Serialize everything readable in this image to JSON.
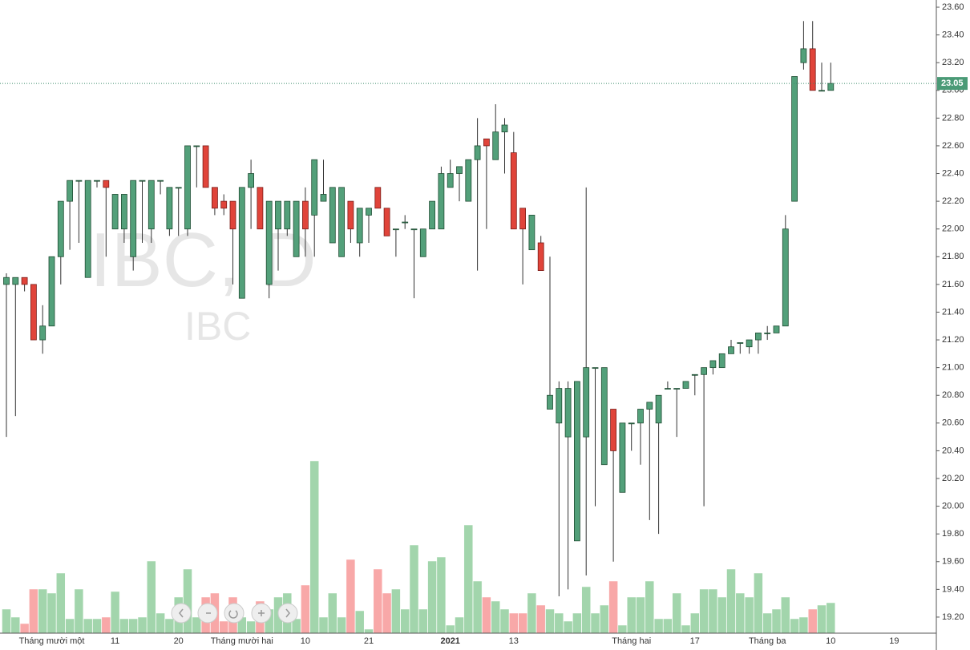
{
  "chart_data": {
    "type": "candlestick",
    "watermark": "IBC, D",
    "watermark_sub": "IBC",
    "last_price": 23.05,
    "categories": [
      null,
      null,
      null,
      null,
      null,
      "Tháng mười một",
      null,
      null,
      null,
      null,
      null,
      null,
      "11",
      null,
      null,
      null,
      null,
      null,
      null,
      "20",
      null,
      null,
      null,
      null,
      null,
      null,
      "Tháng mười hai",
      null,
      null,
      null,
      null,
      null,
      null,
      "10",
      null,
      null,
      null,
      null,
      null,
      null,
      "21",
      null,
      null,
      null,
      null,
      null,
      null,
      null,
      null,
      "2021",
      null,
      null,
      null,
      null,
      null,
      null,
      "13",
      null,
      null,
      null,
      null,
      null,
      null,
      null,
      null,
      null,
      null,
      null,
      null,
      "Tháng hai",
      null,
      null,
      null,
      null,
      null,
      null,
      "17",
      null,
      null,
      null,
      null,
      null,
      null,
      null,
      "Tháng ba",
      null,
      null,
      null,
      null,
      null,
      null,
      "10",
      null,
      null,
      null,
      null,
      null,
      null,
      "19"
    ],
    "open": [
      21.6,
      21.6,
      21.65,
      21.6,
      21.2,
      21.3,
      21.8,
      22.2,
      22.35,
      21.65,
      22.35,
      22.35,
      22.0,
      22.0,
      21.8,
      22.35,
      22.0,
      22.35,
      22.0,
      22.3,
      22.0,
      22.6,
      22.6,
      22.3,
      22.2,
      22.2,
      21.5,
      22.3,
      22.3,
      21.6,
      22.0,
      22.0,
      21.8,
      22.2,
      22.1,
      22.2,
      21.9,
      21.8,
      22.2,
      21.9,
      22.1,
      22.3,
      22.15,
      22.0,
      22.05,
      22.0,
      21.8,
      22.0,
      22.0,
      22.3,
      22.4,
      22.2,
      22.5,
      22.65,
      22.5,
      22.7,
      22.55,
      22.15,
      21.85,
      21.9,
      20.7,
      20.6,
      20.5,
      19.75,
      20.5,
      21.0,
      20.3,
      20.7,
      20.1,
      20.6,
      20.6,
      20.7,
      20.6,
      20.85,
      20.85,
      20.85,
      20.95,
      20.95,
      21.0,
      21.0,
      21.1,
      21.18,
      21.15,
      21.2,
      21.25,
      21.25,
      21.3,
      22.2,
      23.2,
      23.3,
      23.0,
      23.0,
      null,
      null,
      null,
      null,
      null,
      null,
      null
    ],
    "high": [
      21.68,
      21.65,
      21.65,
      21.6,
      21.45,
      21.8,
      22.2,
      22.35,
      22.35,
      22.35,
      22.35,
      22.35,
      22.25,
      22.25,
      22.35,
      22.35,
      22.35,
      22.35,
      22.3,
      22.3,
      22.6,
      22.6,
      22.6,
      22.3,
      22.25,
      22.2,
      22.3,
      22.5,
      22.3,
      22.2,
      22.2,
      22.2,
      22.2,
      22.3,
      22.5,
      22.5,
      22.3,
      22.3,
      22.2,
      22.15,
      22.15,
      22.3,
      22.15,
      22.0,
      22.1,
      22.0,
      22.0,
      22.2,
      22.45,
      22.5,
      22.45,
      22.5,
      22.8,
      22.65,
      22.9,
      22.8,
      22.7,
      22.15,
      22.1,
      21.95,
      21.8,
      20.9,
      20.9,
      20.9,
      22.3,
      21.0,
      21.0,
      20.7,
      20.6,
      20.6,
      20.7,
      20.75,
      20.8,
      20.9,
      20.85,
      20.9,
      20.95,
      21.0,
      21.05,
      21.1,
      21.2,
      21.18,
      21.2,
      21.25,
      21.3,
      21.3,
      22.1,
      23.1,
      23.5,
      23.5,
      23.2,
      23.2,
      null,
      null,
      null,
      null,
      null,
      null,
      null
    ],
    "low": [
      20.5,
      20.65,
      21.55,
      21.2,
      21.1,
      21.3,
      21.6,
      21.85,
      21.9,
      21.65,
      22.3,
      21.8,
      22.0,
      21.9,
      21.7,
      21.9,
      21.9,
      22.25,
      21.95,
      21.95,
      21.95,
      22.3,
      22.3,
      22.1,
      22.1,
      21.6,
      21.5,
      22.0,
      22.0,
      21.5,
      21.7,
      21.95,
      21.8,
      21.8,
      21.8,
      22.2,
      21.9,
      21.8,
      21.9,
      21.8,
      21.9,
      22.15,
      21.95,
      21.8,
      22.0,
      21.5,
      21.8,
      22.0,
      22.0,
      22.3,
      22.2,
      22.2,
      21.7,
      22.0,
      22.5,
      22.4,
      22.0,
      21.6,
      21.85,
      21.7,
      20.7,
      19.35,
      19.4,
      19.75,
      19.5,
      20.0,
      20.3,
      19.6,
      20.1,
      20.4,
      20.3,
      19.9,
      19.8,
      20.85,
      20.5,
      20.85,
      20.8,
      20.0,
      20.95,
      21.0,
      21.1,
      21.1,
      21.1,
      21.1,
      21.2,
      21.25,
      21.3,
      22.2,
      23.15,
      23.0,
      23.0,
      23.0,
      null,
      null,
      null,
      null,
      null,
      null,
      null
    ],
    "close": [
      21.65,
      21.65,
      21.6,
      21.2,
      21.3,
      21.8,
      22.2,
      22.35,
      22.35,
      22.35,
      22.35,
      22.3,
      22.25,
      22.25,
      22.35,
      22.35,
      22.35,
      22.35,
      22.3,
      22.3,
      22.6,
      22.6,
      22.3,
      22.15,
      22.15,
      22.0,
      22.3,
      22.4,
      22.0,
      22.2,
      22.2,
      22.2,
      22.2,
      22.0,
      22.5,
      22.25,
      22.3,
      22.3,
      22.0,
      22.15,
      22.15,
      22.15,
      21.95,
      22.0,
      22.05,
      22.0,
      22.0,
      22.2,
      22.4,
      22.4,
      22.45,
      22.5,
      22.6,
      22.6,
      22.7,
      22.75,
      22.0,
      22.0,
      22.1,
      21.7,
      20.8,
      20.85,
      20.85,
      20.9,
      21.0,
      21.0,
      21.0,
      20.4,
      20.6,
      20.6,
      20.7,
      20.75,
      20.8,
      20.85,
      20.85,
      20.9,
      20.95,
      21.0,
      21.05,
      21.1,
      21.15,
      21.18,
      21.2,
      21.25,
      21.25,
      21.3,
      22.0,
      23.1,
      23.3,
      23.0,
      23.0,
      23.05,
      null,
      null,
      null,
      null,
      null,
      null,
      null
    ],
    "volume": [
      30,
      20,
      12,
      55,
      55,
      50,
      75,
      18,
      55,
      18,
      18,
      20,
      52,
      18,
      18,
      20,
      90,
      25,
      18,
      45,
      80,
      20,
      45,
      50,
      15,
      45,
      20,
      15,
      40,
      30,
      45,
      50,
      18,
      60,
      215,
      20,
      50,
      20,
      92,
      28,
      5,
      80,
      50,
      55,
      30,
      110,
      30,
      90,
      95,
      10,
      20,
      135,
      65,
      45,
      40,
      30,
      25,
      25,
      50,
      35,
      30,
      25,
      15,
      25,
      58,
      25,
      35,
      65,
      10,
      45,
      45,
      65,
      18,
      18,
      50,
      10,
      25,
      55,
      55,
      45,
      80,
      50,
      45,
      75,
      25,
      30,
      45,
      18,
      20,
      30,
      35,
      38,
      null,
      null,
      null,
      null,
      null,
      null,
      null
    ],
    "volume_lim": [
      0,
      790
    ],
    "ylim": [
      19.084,
      23.652
    ],
    "yticks": [
      {
        "value": 19.2,
        "label": "19.20"
      },
      {
        "value": 19.4,
        "label": "19.40"
      },
      {
        "value": 19.6,
        "label": "19.60"
      },
      {
        "value": 19.8,
        "label": "19.80"
      },
      {
        "value": 20.0,
        "label": "20.00"
      },
      {
        "value": 20.2,
        "label": "20.20"
      },
      {
        "value": 20.4,
        "label": "20.40"
      },
      {
        "value": 20.6,
        "label": "20.60"
      },
      {
        "value": 20.8,
        "label": "20.80"
      },
      {
        "value": 21.0,
        "label": "21.00"
      },
      {
        "value": 21.2,
        "label": "21.20"
      },
      {
        "value": 21.4,
        "label": "21.40"
      },
      {
        "value": 21.6,
        "label": "21.60"
      },
      {
        "value": 21.8,
        "label": "21.80"
      },
      {
        "value": 22.0,
        "label": "22.00"
      },
      {
        "value": 22.2,
        "label": "22.20"
      },
      {
        "value": 22.4,
        "label": "22.40"
      },
      {
        "value": 22.6,
        "label": "22.60"
      },
      {
        "value": 22.8,
        "label": "22.80"
      },
      {
        "value": 23.0,
        "label": "23.00"
      },
      {
        "value": 23.2,
        "label": "23.20"
      },
      {
        "value": 23.4,
        "label": "23.40"
      },
      {
        "value": 23.6,
        "label": "23.60"
      }
    ],
    "up_color": "#53a07a",
    "down_color": "#e0443a",
    "up_volume_color": "#9dd3a8",
    "down_volume_color": "#f8a3a3"
  }
}
